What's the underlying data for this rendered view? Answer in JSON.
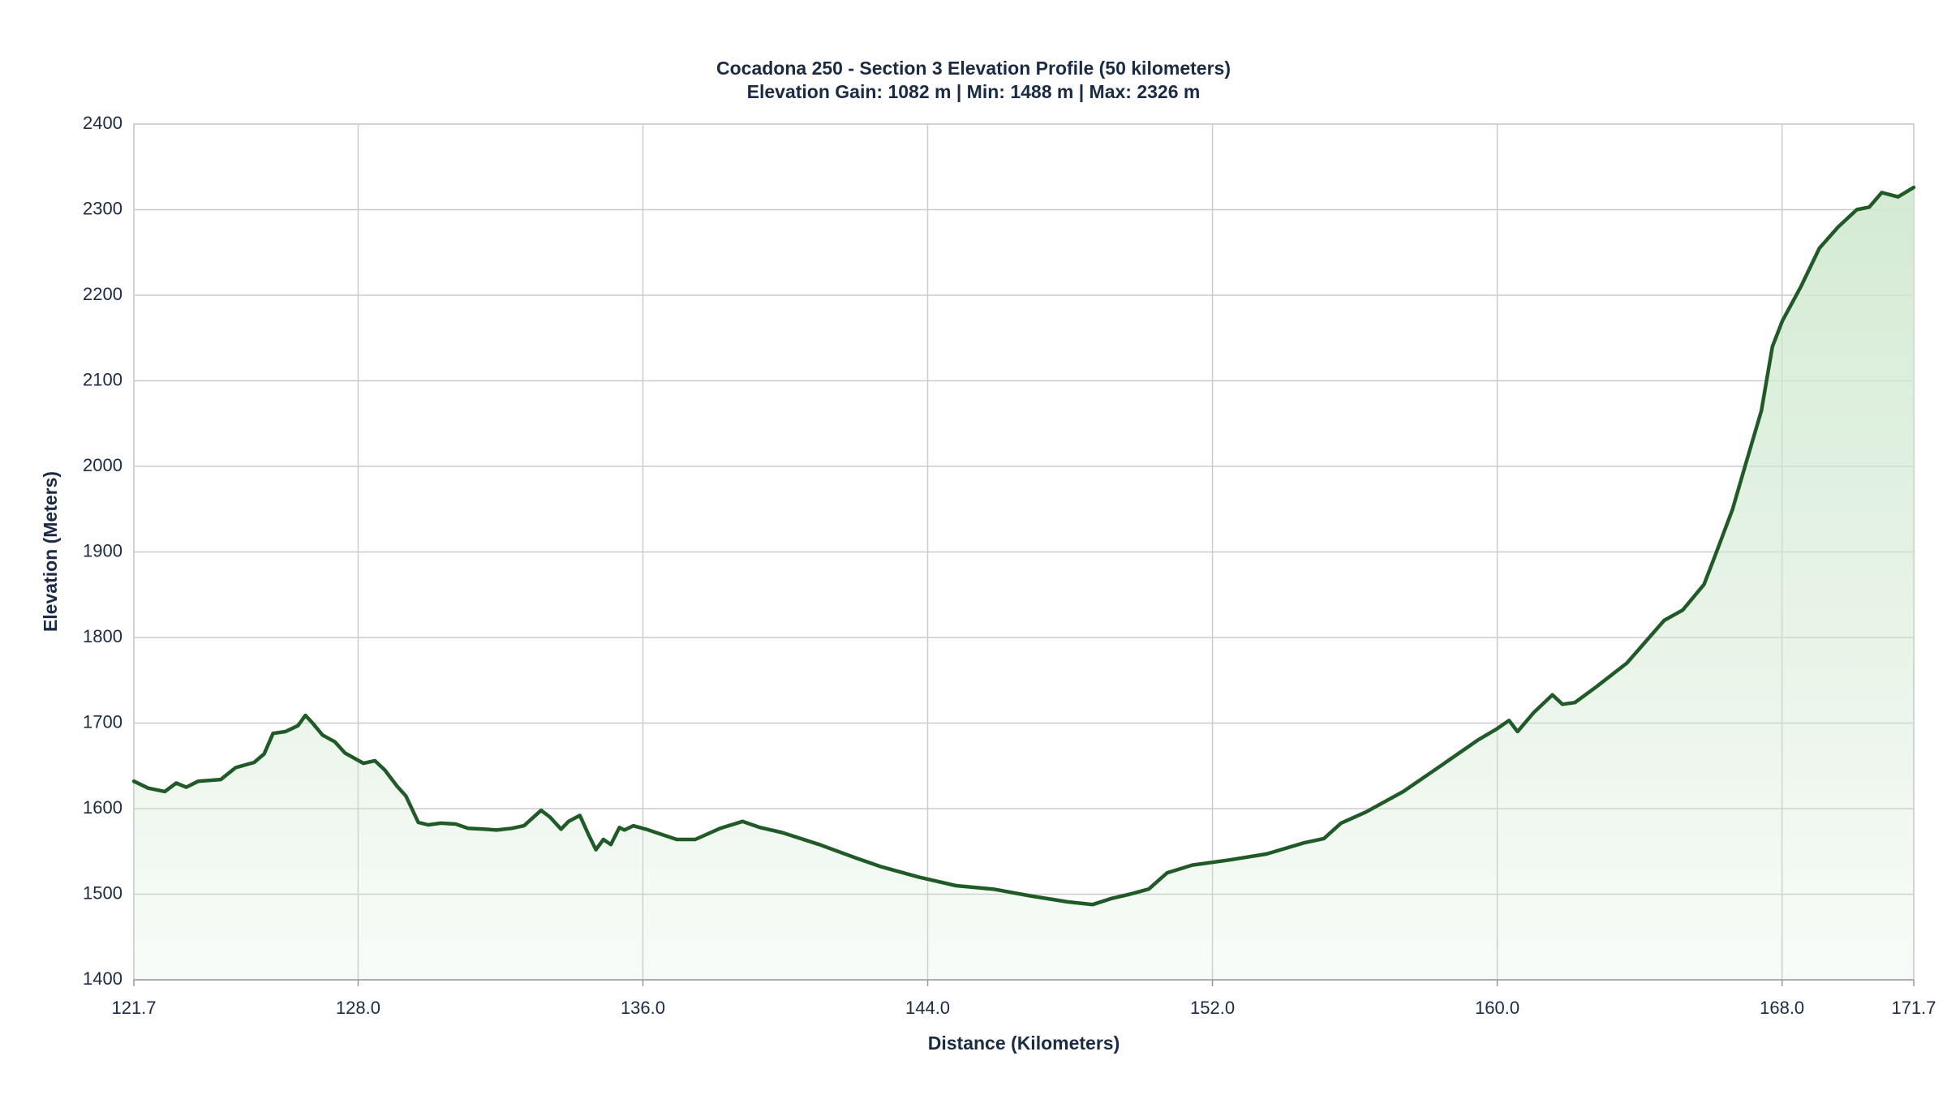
{
  "chart_data": {
    "type": "area",
    "title": "Cocadona 250 - Section 3 Elevation Profile (50 kilometers)",
    "subtitle": "Elevation Gain: 1082 m | Min: 1488 m | Max: 2326 m",
    "x_label": "Distance (Kilometers)",
    "y_label": "Elevation (Meters)",
    "x": [
      121.7,
      122.1,
      122.57,
      122.89,
      123.17,
      123.51,
      124.14,
      124.56,
      125.08,
      125.36,
      125.61,
      125.96,
      126.31,
      126.52,
      126.72,
      127.0,
      127.35,
      127.63,
      128.15,
      128.47,
      128.75,
      129.1,
      129.34,
      129.69,
      129.97,
      130.32,
      130.74,
      131.09,
      131.54,
      131.89,
      132.31,
      132.66,
      133.14,
      133.39,
      133.7,
      133.91,
      134.23,
      134.47,
      134.68,
      134.89,
      135.1,
      135.34,
      135.48,
      135.73,
      136.08,
      136.95,
      137.47,
      138.17,
      138.8,
      139.29,
      139.91,
      140.96,
      142.01,
      142.7,
      143.75,
      144.8,
      145.84,
      146.89,
      147.94,
      148.64,
      149.16,
      149.68,
      150.21,
      150.73,
      151.43,
      152.47,
      153.52,
      154.57,
      155.13,
      155.61,
      156.31,
      157.36,
      158.41,
      159.45,
      159.98,
      160.33,
      160.57,
      161.02,
      161.55,
      161.83,
      162.18,
      162.77,
      163.64,
      164.69,
      165.21,
      165.81,
      166.16,
      166.61,
      166.96,
      167.42,
      167.73,
      168.01,
      168.53,
      169.05,
      169.58,
      170.1,
      170.45,
      170.8,
      171.26,
      171.7
    ],
    "values": [
      1632,
      1624,
      1620,
      1630,
      1625,
      1632,
      1634,
      1648,
      1654,
      1664,
      1688,
      1690,
      1697,
      1709,
      1700,
      1686,
      1678,
      1665,
      1653,
      1656,
      1645,
      1626,
      1615,
      1584,
      1581,
      1583,
      1582,
      1577,
      1576,
      1575,
      1577,
      1580,
      1598,
      1590,
      1576,
      1585,
      1592,
      1570,
      1552,
      1564,
      1558,
      1578,
      1575,
      1580,
      1576,
      1564,
      1564,
      1577,
      1585,
      1578,
      1572,
      1558,
      1542,
      1532,
      1520,
      1510,
      1506,
      1498,
      1491,
      1488,
      1495,
      1500,
      1506,
      1525,
      1534,
      1540,
      1547,
      1560,
      1565,
      1583,
      1596,
      1620,
      1650,
      1680,
      1693,
      1703,
      1690,
      1712,
      1733,
      1722,
      1724,
      1742,
      1770,
      1820,
      1832,
      1862,
      1900,
      1950,
      2000,
      2065,
      2140,
      2170,
      2210,
      2255,
      2280,
      2300,
      2303,
      2320,
      2315,
      2326
    ],
    "color": "#1f5a27",
    "fill_color": "#cfe8cf",
    "xlim": [
      121.7,
      171.7
    ],
    "xticks": [
      121.7,
      {
        "value": 128,
        "label": "128.0"
      },
      {
        "value": 136,
        "label": "136.0"
      },
      {
        "value": 144,
        "label": "144.0"
      },
      {
        "value": 152,
        "label": "152.0"
      },
      {
        "value": 160,
        "label": "160.0"
      },
      {
        "value": 168,
        "label": "168.0"
      },
      171.7
    ],
    "ylim": [
      1400,
      2400
    ],
    "yticks": [
      1400,
      1500,
      1600,
      1700,
      1800,
      1900,
      2000,
      2100,
      2200,
      2300,
      2400
    ],
    "grid": true
  }
}
